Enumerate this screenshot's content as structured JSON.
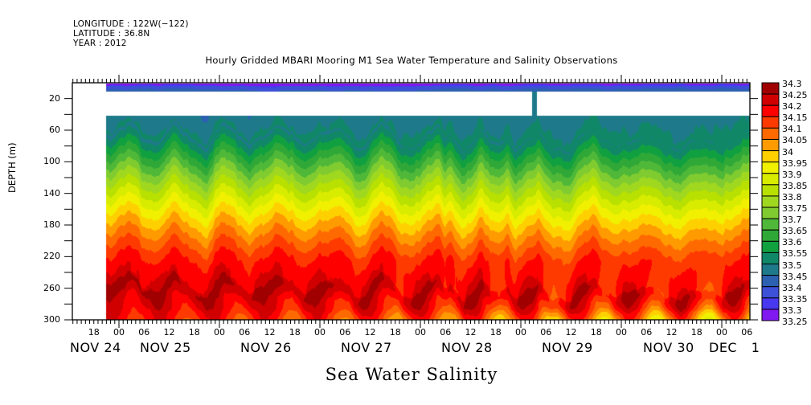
{
  "meta": {
    "longitude": "LONGITUDE : 122W(−122)",
    "latitude": "LATITUDE : 36.8N",
    "year": "YEAR : 2012"
  },
  "chart_data": {
    "type": "heatmap",
    "subtype": "filled-contour",
    "title": "Hourly Gridded MBARI Mooring M1 Sea Water Temperature and Salinity Observations",
    "xlabel": "Sea Water Salinity",
    "ylabel": "DEPTH (m)",
    "y_axis": {
      "range": [
        0,
        300
      ],
      "inverted": true,
      "ticks": [
        20,
        60,
        100,
        140,
        180,
        220,
        260,
        300
      ],
      "tick_labels": [
        "20",
        "60",
        "100",
        "140",
        "180",
        "220",
        "260",
        "300"
      ]
    },
    "x_axis": {
      "range_start": "2012-11-24 13:00",
      "range_end": "2012-12-01 08:00",
      "hour_ticks": [
        {
          "label": "18",
          "day": 0,
          "hour": 18
        },
        {
          "label": "00",
          "day": 1,
          "hour": 0
        },
        {
          "label": "06",
          "day": 1,
          "hour": 6
        },
        {
          "label": "12",
          "day": 1,
          "hour": 12
        },
        {
          "label": "18",
          "day": 1,
          "hour": 18
        },
        {
          "label": "00",
          "day": 2,
          "hour": 0
        },
        {
          "label": "06",
          "day": 2,
          "hour": 6
        },
        {
          "label": "12",
          "day": 2,
          "hour": 12
        },
        {
          "label": "18",
          "day": 2,
          "hour": 18
        },
        {
          "label": "00",
          "day": 3,
          "hour": 0
        },
        {
          "label": "06",
          "day": 3,
          "hour": 6
        },
        {
          "label": "12",
          "day": 3,
          "hour": 12
        },
        {
          "label": "18",
          "day": 3,
          "hour": 18
        },
        {
          "label": "00",
          "day": 4,
          "hour": 0
        },
        {
          "label": "06",
          "day": 4,
          "hour": 6
        },
        {
          "label": "12",
          "day": 4,
          "hour": 12
        },
        {
          "label": "18",
          "day": 4,
          "hour": 18
        },
        {
          "label": "00",
          "day": 5,
          "hour": 0
        },
        {
          "label": "06",
          "day": 5,
          "hour": 6
        },
        {
          "label": "12",
          "day": 5,
          "hour": 12
        },
        {
          "label": "18",
          "day": 5,
          "hour": 18
        },
        {
          "label": "00",
          "day": 6,
          "hour": 0
        },
        {
          "label": "06",
          "day": 6,
          "hour": 6
        },
        {
          "label": "12",
          "day": 6,
          "hour": 12
        },
        {
          "label": "18",
          "day": 6,
          "hour": 18
        },
        {
          "label": "00",
          "day": 7,
          "hour": 0
        },
        {
          "label": "06",
          "day": 7,
          "hour": 6
        }
      ],
      "day_labels": [
        {
          "label": "NOV 24",
          "day": 0
        },
        {
          "label": "NOV 25",
          "day": 1
        },
        {
          "label": "NOV 26",
          "day": 2
        },
        {
          "label": "NOV 27",
          "day": 3
        },
        {
          "label": "NOV 28",
          "day": 4
        },
        {
          "label": "NOV 29",
          "day": 5
        },
        {
          "label": "NOV 30",
          "day": 6
        },
        {
          "label": "DEC 1",
          "day": 7
        }
      ]
    },
    "colorbar": {
      "levels": [
        "34.3",
        "34.25",
        "34.2",
        "34.15",
        "34.1",
        "34.05",
        "34",
        "33.95",
        "33.9",
        "33.85",
        "33.8",
        "33.75",
        "33.7",
        "33.65",
        "33.6",
        "33.55",
        "33.5",
        "33.45",
        "33.4",
        "33.35",
        "33.3",
        "33.25"
      ],
      "colors": [
        "#a00000",
        "#d00000",
        "#ff0000",
        "#ff3a00",
        "#ff6a00",
        "#ff9a00",
        "#ffd000",
        "#f0f000",
        "#d8ec00",
        "#b8e000",
        "#a0d820",
        "#80cc30",
        "#50b838",
        "#30a838",
        "#10a040",
        "#108868",
        "#1e7a8a",
        "#2c60b0",
        "#3c50d8",
        "#4838f0",
        "#8018f0",
        "#c000f0"
      ]
    },
    "data_description": {
      "data_start": "2012-11-24 20:00",
      "missing_depth_range_m": [
        10,
        40
      ],
      "surface_band_depth_m": [
        0,
        10
      ],
      "surface_band_salinity_approx": 33.35,
      "upper_layer_salinity_approx": 33.45,
      "halocline_depth_m": [
        60,
        200
      ],
      "max_salinity_core_depth_m": 255,
      "max_salinity_approx": 34.27,
      "near_bottom_salinity_approx": 34.1,
      "notes": "Salinity increases with depth from ~33.35 at surface to ~34.25 near 255 m, then decreases slightly toward 300 m."
    }
  }
}
